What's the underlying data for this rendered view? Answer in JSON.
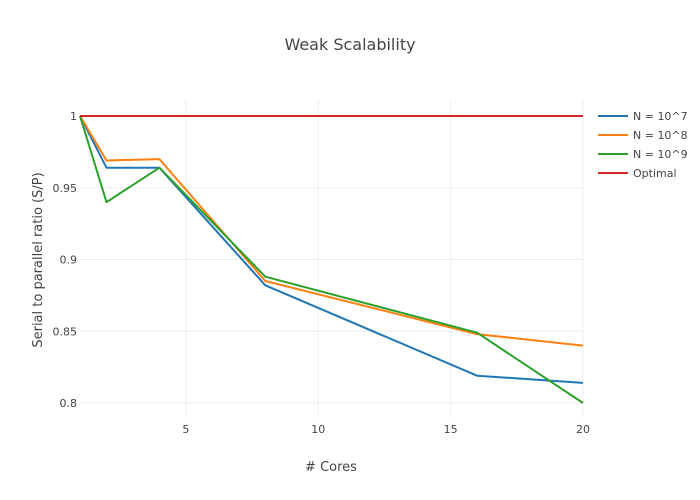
{
  "chart_data": {
    "type": "line",
    "title": "Weak Scalability",
    "xlabel": "# Cores",
    "ylabel": "Serial to parallel ratio (S/P)",
    "xlim": [
      1,
      20
    ],
    "ylim": [
      0.79,
      1.0
    ],
    "xticks": [
      5,
      10,
      15,
      20
    ],
    "xtick_labels": [
      "5",
      "10",
      "15",
      "20"
    ],
    "yticks": [
      0.8,
      0.85,
      0.9,
      0.95,
      1
    ],
    "ytick_labels": [
      "0.8",
      "0.85",
      "0.9",
      "0.95",
      "1"
    ],
    "grid": true,
    "legend_position": "top-right",
    "x": [
      1,
      2,
      4,
      8,
      16,
      20
    ],
    "series": [
      {
        "name": "N = 10^7",
        "color": "#1f77b4",
        "values": [
          1,
          0.964,
          0.964,
          0.882,
          0.819,
          0.814
        ]
      },
      {
        "name": "N = 10^8",
        "color": "#ff7f0e",
        "values": [
          1,
          0.969,
          0.97,
          0.885,
          0.848,
          0.84
        ]
      },
      {
        "name": "N = 10^9",
        "color": "#2ca02c",
        "values": [
          1,
          0.94,
          0.964,
          0.888,
          0.849,
          0.8
        ]
      },
      {
        "name": "Optimal",
        "color": "#d62728",
        "values": [
          1,
          1,
          1,
          1,
          1,
          1
        ]
      }
    ]
  }
}
